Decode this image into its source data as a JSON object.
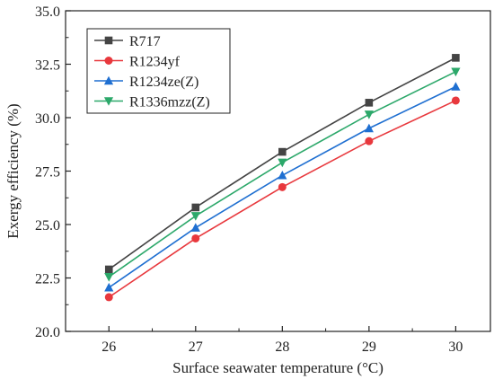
{
  "chart_data": {
    "type": "line",
    "xlabel": "Surface seawater temperature (°C)",
    "ylabel": "Exergy efficiency (%)",
    "x": [
      26,
      27,
      28,
      29,
      30
    ],
    "xticks": [
      "26",
      "27",
      "28",
      "29",
      "30"
    ],
    "xlim": [
      25.5,
      30.4
    ],
    "ylim": [
      20.0,
      35.0
    ],
    "yticks": [
      "20.0",
      "22.5",
      "25.0",
      "27.5",
      "30.0",
      "32.5",
      "35.0"
    ],
    "legend_position": "top-left",
    "grid": false,
    "series": [
      {
        "name": "R717",
        "color": "#444444",
        "marker": "square",
        "values": [
          22.9,
          25.8,
          28.4,
          30.7,
          32.8
        ]
      },
      {
        "name": "R1234yf",
        "color": "#e8383d",
        "marker": "circle",
        "values": [
          21.6,
          24.35,
          26.75,
          28.9,
          30.8
        ]
      },
      {
        "name": "R1234ze(Z)",
        "color": "#1f6fd1",
        "marker": "triangle-up",
        "values": [
          22.05,
          24.85,
          27.3,
          29.5,
          31.45
        ]
      },
      {
        "name": "R1336mzz(Z)",
        "color": "#2ca86a",
        "marker": "triangle-down",
        "values": [
          22.55,
          25.4,
          27.9,
          30.15,
          32.15
        ]
      }
    ]
  }
}
